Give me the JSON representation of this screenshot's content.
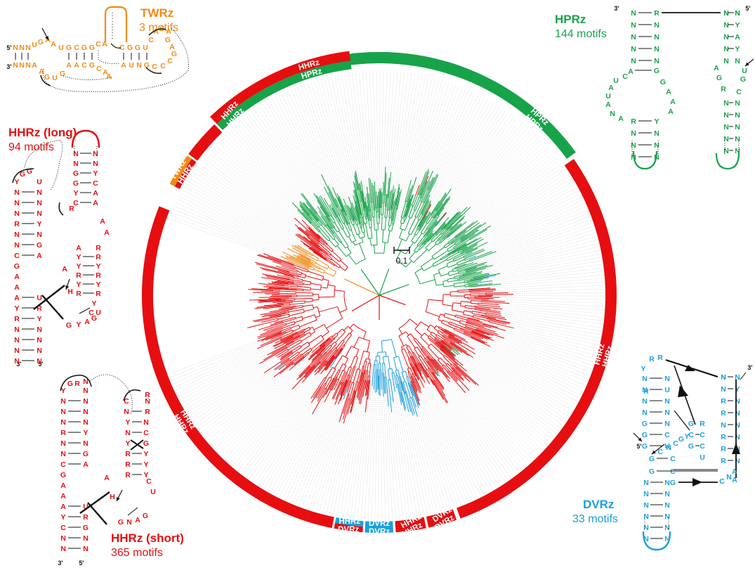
{
  "colors": {
    "HHRz": "#e60e10",
    "HPRz": "#17a34a",
    "TWRz": "#f28a14",
    "DVRz": "#1aa0dc",
    "line": "#111111",
    "guide": "#c8c8c8"
  },
  "scale_bar": {
    "label": "0.1"
  },
  "ring_labels": {
    "hhrz": "HHRz",
    "hprz": "HPRz",
    "twrz": "TWRz",
    "dvrz": "DVRz"
  },
  "families": {
    "twrz": {
      "name": "TWRz",
      "count": "3 motifs"
    },
    "hprz": {
      "name": "HPRz",
      "count": "144 motifs"
    },
    "hhrz_long": {
      "name": "HHRz (long)",
      "count": "94 motifs"
    },
    "hhrz_short": {
      "name": "HHRz (short)",
      "count": "365 motifs"
    },
    "dvrz": {
      "name": "DVRz",
      "count": "33 motifs"
    }
  },
  "ends": {
    "five": "5'",
    "three": "3'"
  },
  "structures": {
    "twrz": {
      "strand_top": "NNNUGAAUGCGGCACGGUCACA",
      "strand_bottom": "NNNAAGUGAACGCAAAUNGCCCGAG"
    },
    "hprz": {
      "left_stem": "RNNNNNNNNN",
      "left_stem_pair": "NNNNAACGGNAA",
      "left_loop": "UAUANAGAAA",
      "right_top": "NNNNNNYGUC",
      "right_pair": "NNNNAGRNNNN",
      "right_loop": "CNNNNNN"
    },
    "hhrz_long": {
      "stem1_left": "YGGNNNRNNCGAAAYRNN",
      "stem1_right": "UNNNYNGAURYNNN",
      "stem2_left": "NNGGYCR",
      "stem2_right": "NNNYCAAA",
      "core": "AYYRYRRRYHGYAGCU"
    },
    "hhrz_short": {
      "stem1_left": "YGRNNNRNNCGAAAYCNN",
      "stem1_right": "NNNNYNGAURRGNN",
      "stem2_left": "CRNYNYRRRH",
      "stem2_right": "NRNCGYYYCU",
      "core": "GNAG"
    },
    "dvrz": {
      "left_stem": "YRRNNNNNGGGGCGN",
      "left_pair": "NUNNNNCCUCU",
      "right_stem": "NNNNRNNRRN",
      "right_pair": "NYNNNNNNN",
      "core": "YGRCCUCNCGNAAG",
      "loop": "NNNNNNN"
    }
  },
  "chart_data": {
    "type": "tree",
    "clades": [
      {
        "name": "HHRz",
        "color": "#e60e10"
      },
      {
        "name": "HPRz",
        "color": "#17a34a"
      },
      {
        "name": "TWRz",
        "color": "#f28a14"
      },
      {
        "name": "DVRz",
        "color": "#1aa0dc"
      }
    ]
  }
}
